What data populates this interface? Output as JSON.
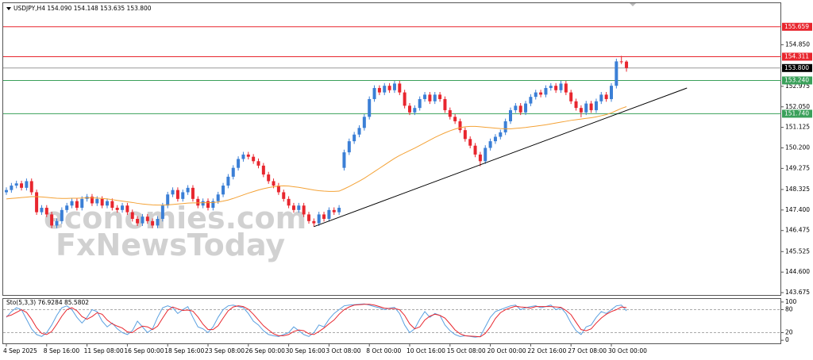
{
  "chart_data": {
    "type": "candlestick",
    "title": "USDJPY,H4  154.090 154.148 153.635 153.800",
    "watermark": [
      "economies.com",
      "FxNewsToday"
    ],
    "categories": [
      "4 Sep 2025",
      null,
      null,
      null,
      null,
      null,
      null,
      null,
      "8 Sep 16:00",
      null,
      null,
      null,
      null,
      null,
      null,
      null,
      "11 Sep 08:00",
      null,
      null,
      null,
      null,
      null,
      null,
      null,
      "16 Sep 00:00",
      null,
      null,
      null,
      null,
      null,
      null,
      null,
      "18 Sep 16:00",
      null,
      null,
      null,
      null,
      null,
      null,
      null,
      "23 Sep 08:00",
      null,
      null,
      null,
      null,
      null,
      null,
      null,
      "26 Sep 00:00",
      null,
      null,
      null,
      null,
      null,
      null,
      null,
      "30 Sep 16:00",
      null,
      null,
      null,
      null,
      null,
      null,
      null,
      "3 Oct 08:00",
      null,
      null,
      null,
      null,
      null,
      null,
      null,
      "8 Oct 00:00",
      null,
      null,
      null,
      null,
      null,
      null,
      null,
      "10 Oct 16:00",
      null,
      null,
      null,
      null,
      null,
      null,
      null,
      "15 Oct 08:00",
      null,
      null,
      null,
      null,
      null,
      null,
      null,
      "20 Oct 00:00",
      null,
      null,
      null,
      null,
      null,
      null,
      null,
      "22 Oct 16:00",
      null,
      null,
      null,
      null,
      null,
      null,
      null,
      "27 Oct 08:00",
      null,
      null,
      null,
      null,
      null,
      null,
      null,
      "30 Oct 00:00",
      null,
      null,
      null
    ],
    "open": [
      148.2,
      148.3,
      148.5,
      148.6,
      148.4,
      148.7,
      148.2,
      147.3,
      147.5,
      147.2,
      146.7,
      146.9,
      147.4,
      147.6,
      147.8,
      147.5,
      147.9,
      148.0,
      147.7,
      147.9,
      147.6,
      147.8,
      147.5,
      147.4,
      147.6,
      147.3,
      147.0,
      146.8,
      147.1,
      146.9,
      146.7,
      147.0,
      147.6,
      148.1,
      148.3,
      147.9,
      148.2,
      148.4,
      147.9,
      147.6,
      147.8,
      147.5,
      147.8,
      148.1,
      148.5,
      148.9,
      149.3,
      149.7,
      149.9,
      149.8,
      149.6,
      149.4,
      149.0,
      148.7,
      148.5,
      148.2,
      147.9,
      147.6,
      147.4,
      147.6,
      147.2,
      146.9,
      146.8,
      147.2,
      147.0,
      147.4,
      147.3,
      149.3,
      150.0,
      150.5,
      150.8,
      151.1,
      151.6,
      152.4,
      152.9,
      152.7,
      153.0,
      152.8,
      153.1,
      152.7,
      152.1,
      151.8,
      152.0,
      152.4,
      152.6,
      152.3,
      152.6,
      152.4,
      151.9,
      151.6,
      151.4,
      151.0,
      150.6,
      150.3,
      149.9,
      149.6,
      150.2,
      150.5,
      150.7,
      150.9,
      151.4,
      151.9,
      152.1,
      151.8,
      152.2,
      152.5,
      152.7,
      152.6,
      152.9,
      153.0,
      152.8,
      153.1,
      152.7,
      152.3,
      152.0,
      151.8,
      152.2,
      151.9,
      152.3,
      152.6,
      152.4,
      153.0,
      154.1,
      154.09
    ],
    "high": [
      148.42,
      148.62,
      148.72,
      148.72,
      148.82,
      148.82,
      148.32,
      147.62,
      147.62,
      147.32,
      147.02,
      147.52,
      147.72,
      147.92,
      147.92,
      148.02,
      148.12,
      148.12,
      148.02,
      148.02,
      147.92,
      147.92,
      147.62,
      147.72,
      147.72,
      147.42,
      147.12,
      147.22,
      147.22,
      147.02,
      147.12,
      147.72,
      148.22,
      148.42,
      148.42,
      148.32,
      148.52,
      148.52,
      148.02,
      147.92,
      147.92,
      147.92,
      148.22,
      148.62,
      149.02,
      149.42,
      149.82,
      150.02,
      150.02,
      149.92,
      149.72,
      149.52,
      149.12,
      148.82,
      148.62,
      148.32,
      148.02,
      147.72,
      147.72,
      147.72,
      147.32,
      147.02,
      147.32,
      147.32,
      147.52,
      147.52,
      147.62,
      150.12,
      150.62,
      150.92,
      151.22,
      151.72,
      152.52,
      153.02,
      153.02,
      153.12,
      153.12,
      153.22,
      153.22,
      152.82,
      152.22,
      152.12,
      152.52,
      152.72,
      152.72,
      152.72,
      152.72,
      152.52,
      152.02,
      151.72,
      151.52,
      151.12,
      150.72,
      150.42,
      150.02,
      150.32,
      150.62,
      150.82,
      151.02,
      151.52,
      152.02,
      152.22,
      152.22,
      152.32,
      152.62,
      152.82,
      152.82,
      153.02,
      153.12,
      153.12,
      153.22,
      153.22,
      152.82,
      152.42,
      152.12,
      152.32,
      152.32,
      152.42,
      152.72,
      152.72,
      153.12,
      154.22,
      154.35,
      154.148
    ],
    "low": [
      148.08,
      148.18,
      148.38,
      148.28,
      148.28,
      148.08,
      147.18,
      147.18,
      147.08,
      146.58,
      146.58,
      146.78,
      147.28,
      147.48,
      147.38,
      147.38,
      147.78,
      147.58,
      147.58,
      147.48,
      147.48,
      147.38,
      147.28,
      147.28,
      147.18,
      146.88,
      146.68,
      146.68,
      146.78,
      146.58,
      146.58,
      146.88,
      147.48,
      147.98,
      147.78,
      147.78,
      148.08,
      147.78,
      147.48,
      147.48,
      147.38,
      147.38,
      147.68,
      147.98,
      148.38,
      148.78,
      149.18,
      149.58,
      149.68,
      149.48,
      149.28,
      148.88,
      148.58,
      148.38,
      148.08,
      147.78,
      147.48,
      147.28,
      147.28,
      147.08,
      146.78,
      146.65,
      146.68,
      146.88,
      146.88,
      147.18,
      147.18,
      149.18,
      149.88,
      150.38,
      150.68,
      150.98,
      151.48,
      152.28,
      152.58,
      152.58,
      152.68,
      152.68,
      152.58,
      151.98,
      151.68,
      151.68,
      151.88,
      152.28,
      152.18,
      152.18,
      152.28,
      151.78,
      151.48,
      151.28,
      150.88,
      150.48,
      150.18,
      149.78,
      149.37,
      149.48,
      150.08,
      150.38,
      150.58,
      150.78,
      151.28,
      151.78,
      151.68,
      151.68,
      152.08,
      152.38,
      152.48,
      152.48,
      152.78,
      152.68,
      152.68,
      152.58,
      152.18,
      151.88,
      151.58,
      151.68,
      151.78,
      151.78,
      152.18,
      152.28,
      152.28,
      152.88,
      153.98,
      153.635
    ],
    "close": [
      148.3,
      148.5,
      148.6,
      148.4,
      148.7,
      148.2,
      147.3,
      147.5,
      147.2,
      146.7,
      146.9,
      147.4,
      147.6,
      147.8,
      147.5,
      147.9,
      148.0,
      147.7,
      147.9,
      147.6,
      147.8,
      147.5,
      147.4,
      147.6,
      147.3,
      147.0,
      146.8,
      147.1,
      146.9,
      146.7,
      147.0,
      147.6,
      148.1,
      148.3,
      147.9,
      148.2,
      148.4,
      147.9,
      147.6,
      147.8,
      147.5,
      147.8,
      148.1,
      148.5,
      148.9,
      149.3,
      149.7,
      149.9,
      149.8,
      149.6,
      149.4,
      149.0,
      148.7,
      148.5,
      148.2,
      147.9,
      147.6,
      147.4,
      147.6,
      147.2,
      146.9,
      146.8,
      147.2,
      147.0,
      147.4,
      147.3,
      147.5,
      150.0,
      150.5,
      150.8,
      151.1,
      151.6,
      152.4,
      152.9,
      152.7,
      153.0,
      152.8,
      153.1,
      152.7,
      152.1,
      151.8,
      152.0,
      152.4,
      152.6,
      152.3,
      152.6,
      152.4,
      151.9,
      151.6,
      151.4,
      151.0,
      150.6,
      150.3,
      149.9,
      149.6,
      150.2,
      150.5,
      150.7,
      150.9,
      151.4,
      151.9,
      152.1,
      151.8,
      152.2,
      152.5,
      152.7,
      152.6,
      152.9,
      153.0,
      152.8,
      153.1,
      152.7,
      152.3,
      152.0,
      151.8,
      152.2,
      151.9,
      152.3,
      152.6,
      152.4,
      153.0,
      154.1,
      154.09,
      153.8
    ],
    "up_color": "#3b7fd6",
    "down_color": "#e8262e",
    "ma": {
      "color": "#f4a236",
      "values": [
        147.9,
        147.92,
        147.94,
        147.96,
        147.98,
        148.0,
        148.0,
        147.99,
        147.97,
        147.95,
        147.93,
        147.92,
        147.92,
        147.93,
        147.93,
        147.94,
        147.95,
        147.95,
        147.94,
        147.92,
        147.9,
        147.87,
        147.83,
        147.8,
        147.77,
        147.74,
        147.7,
        147.67,
        147.65,
        147.63,
        147.62,
        147.62,
        147.63,
        147.65,
        147.67,
        147.69,
        147.71,
        147.72,
        147.72,
        147.73,
        147.73,
        147.74,
        147.76,
        147.8,
        147.85,
        147.92,
        148.0,
        148.08,
        148.16,
        148.23,
        148.3,
        148.36,
        148.41,
        148.45,
        148.48,
        148.49,
        148.48,
        148.45,
        148.42,
        148.38,
        148.34,
        148.3,
        148.27,
        148.25,
        148.24,
        148.24,
        148.25,
        148.35,
        148.46,
        148.58,
        148.7,
        148.83,
        148.98,
        149.13,
        149.28,
        149.43,
        149.58,
        149.73,
        149.86,
        149.97,
        150.08,
        150.19,
        150.31,
        150.43,
        150.55,
        150.67,
        150.78,
        150.88,
        150.97,
        151.05,
        151.11,
        151.15,
        151.17,
        151.17,
        151.15,
        151.13,
        151.11,
        151.09,
        151.07,
        151.06,
        151.06,
        151.08,
        151.1,
        151.12,
        151.15,
        151.18,
        151.21,
        151.24,
        151.28,
        151.32,
        151.36,
        151.4,
        151.44,
        151.47,
        151.5,
        151.53,
        151.56,
        151.6,
        151.65,
        151.7,
        151.78,
        151.88,
        151.98,
        152.06
      ]
    },
    "trendline": {
      "color": "#000000",
      "from": {
        "index": 61,
        "price": 146.65
      },
      "to": {
        "index": 135,
        "price": 152.9
      }
    },
    "levels": [
      {
        "price": 155.659,
        "color": "#e8262e"
      },
      {
        "price": 154.311,
        "color": "#e8262e"
      },
      {
        "price": {
          "value": 153.8,
          "label": "153.800"
        },
        "color": "#000000"
      },
      {
        "price": {
          "value": 153.24,
          "label": "153.240"
        },
        "color": "#3aa05a"
      },
      {
        "price": {
          "value": 151.74,
          "label": "151.740"
        },
        "color": "#3aa05a"
      }
    ],
    "ylim": [
      143.569,
      156.724
    ],
    "yticks": [
      {
        "value": 154.85,
        "label": "154.850"
      },
      152.975,
      {
        "value": 152.05,
        "label": "152.050"
      },
      151.125,
      {
        "value": 150.2,
        "label": "150.200"
      },
      149.275,
      148.325,
      {
        "value": 147.4,
        "label": "147.400"
      },
      146.475,
      145.525,
      {
        "value": 144.6,
        "label": "144.600"
      },
      143.675
    ],
    "indicator": {
      "label": "Sto(5,3,3) 76.9284 85.5802",
      "ylim": [
        -8,
        108
      ],
      "yticks": [
        100,
        80,
        20,
        0
      ],
      "dashed_levels": [
        80,
        20
      ],
      "series": [
        {
          "color": "#5aa0e0",
          "values": [
            60,
            75,
            85,
            80,
            55,
            30,
            15,
            10,
            20,
            40,
            65,
            85,
            90,
            80,
            60,
            45,
            60,
            80,
            75,
            50,
            35,
            45,
            30,
            20,
            15,
            25,
            50,
            35,
            20,
            30,
            60,
            85,
            90,
            85,
            70,
            80,
            88,
            60,
            35,
            30,
            20,
            35,
            60,
            80,
            90,
            92,
            88,
            85,
            70,
            50,
            40,
            25,
            15,
            12,
            10,
            15,
            20,
            35,
            25,
            15,
            10,
            20,
            40,
            35,
            55,
            70,
            80,
            90,
            92,
            93,
            94,
            95,
            92,
            88,
            85,
            80,
            84,
            86,
            70,
            40,
            20,
            30,
            55,
            75,
            60,
            70,
            65,
            40,
            25,
            15,
            10,
            12,
            10,
            8,
            10,
            35,
            60,
            75,
            80,
            85,
            90,
            92,
            80,
            85,
            88,
            90,
            85,
            88,
            92,
            80,
            85,
            70,
            45,
            25,
            15,
            35,
            40,
            60,
            75,
            70,
            80,
            90,
            92,
            76.9284
          ]
        },
        {
          "color": "#e8262e",
          "values": [
            62,
            66,
            73,
            80,
            73,
            55,
            33,
            18,
            15,
            23,
            42,
            63,
            80,
            85,
            77,
            62,
            55,
            62,
            72,
            68,
            53,
            43,
            37,
            32,
            22,
            20,
            30,
            37,
            35,
            28,
            37,
            58,
            78,
            87,
            82,
            78,
            79,
            76,
            61,
            42,
            28,
            28,
            38,
            58,
            77,
            87,
            90,
            88,
            81,
            68,
            53,
            38,
            27,
            17,
            12,
            12,
            15,
            23,
            27,
            25,
            17,
            15,
            23,
            32,
            43,
            53,
            68,
            80,
            87,
            92,
            93,
            94,
            94,
            92,
            88,
            84,
            83,
            83,
            80,
            65,
            43,
            30,
            35,
            53,
            63,
            68,
            65,
            58,
            43,
            27,
            17,
            12,
            11,
            10,
            9,
            18,
            35,
            57,
            72,
            80,
            85,
            89,
            87,
            86,
            84,
            88,
            88,
            88,
            88,
            87,
            86,
            78,
            67,
            47,
            28,
            25,
            30,
            45,
            58,
            68,
            75,
            80,
            87,
            85.5802
          ]
        }
      ]
    }
  }
}
